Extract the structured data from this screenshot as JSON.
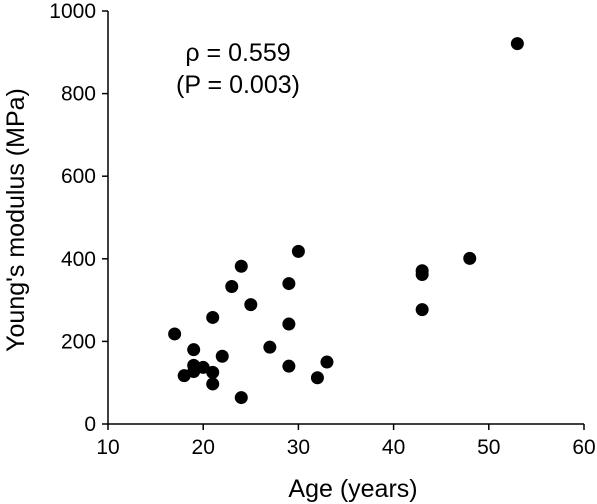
{
  "chart_data": {
    "type": "scatter",
    "xlabel": "Age (years)",
    "ylabel": "Young's modulus (MPa)",
    "xlim": [
      10,
      60
    ],
    "ylim": [
      0,
      1000
    ],
    "x_ticks": [
      "10",
      "20",
      "30",
      "40",
      "50",
      "60"
    ],
    "y_ticks": [
      "0",
      "200",
      "400",
      "600",
      "800",
      "1000"
    ],
    "grid": false,
    "marker_color": "#000000",
    "annotation_line1": "ρ = 0.559",
    "annotation_line2": "(P = 0.003)",
    "points": [
      {
        "x": 17,
        "y": 218
      },
      {
        "x": 18,
        "y": 117
      },
      {
        "x": 19,
        "y": 180
      },
      {
        "x": 19,
        "y": 142
      },
      {
        "x": 19,
        "y": 127
      },
      {
        "x": 20,
        "y": 137
      },
      {
        "x": 21,
        "y": 258
      },
      {
        "x": 21,
        "y": 125
      },
      {
        "x": 21,
        "y": 97
      },
      {
        "x": 22,
        "y": 164
      },
      {
        "x": 23,
        "y": 333
      },
      {
        "x": 24,
        "y": 382
      },
      {
        "x": 24,
        "y": 64
      },
      {
        "x": 25,
        "y": 289
      },
      {
        "x": 27,
        "y": 186
      },
      {
        "x": 29,
        "y": 340
      },
      {
        "x": 29,
        "y": 242
      },
      {
        "x": 29,
        "y": 140
      },
      {
        "x": 30,
        "y": 418
      },
      {
        "x": 32,
        "y": 112
      },
      {
        "x": 33,
        "y": 150
      },
      {
        "x": 43,
        "y": 371
      },
      {
        "x": 43,
        "y": 362
      },
      {
        "x": 43,
        "y": 277
      },
      {
        "x": 48,
        "y": 401
      },
      {
        "x": 53,
        "y": 921
      }
    ]
  }
}
